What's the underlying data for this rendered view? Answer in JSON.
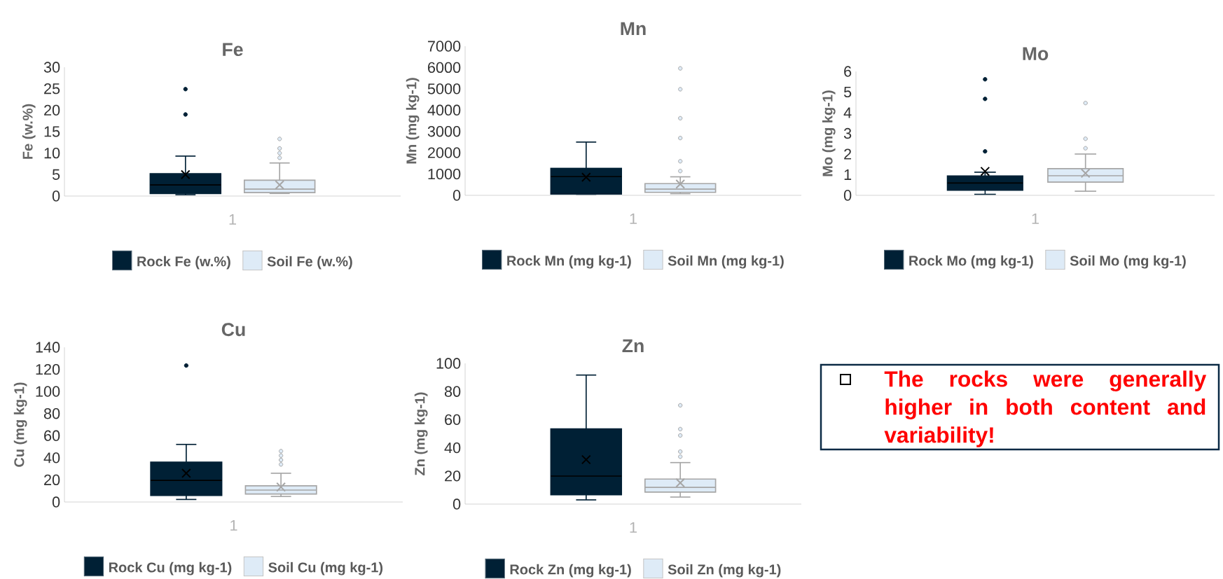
{
  "chart_data": [
    {
      "type": "box",
      "title": "Fe",
      "ylabel": "Fe (w.%)",
      "categories": [
        "1"
      ],
      "ylim": [
        0,
        30
      ],
      "yticks": [
        0,
        5,
        10,
        15,
        20,
        25,
        30
      ],
      "legend": "bottom",
      "series": [
        {
          "name": "Rock Fe (w.%)",
          "color": "#002035",
          "boxes": [
            {
              "low": 0.3,
              "q1": 0.6,
              "median": 2.6,
              "q3": 5.2,
              "high": 9.3,
              "mean": 5.0,
              "outliers": [
                24.9,
                19.0
              ]
            }
          ]
        },
        {
          "name": "Soil Fe (w.%)",
          "color": "#deebf7",
          "boxes": [
            {
              "low": 0.6,
              "q1": 0.8,
              "median": 1.6,
              "q3": 3.7,
              "high": 7.7,
              "mean": 2.6,
              "outliers": [
                13.3,
                11.1,
                10.0,
                8.9
              ]
            }
          ]
        }
      ]
    },
    {
      "type": "box",
      "title": "Mn",
      "ylabel": "Mn (mg kg-1)",
      "categories": [
        "1"
      ],
      "ylim": [
        0,
        7000
      ],
      "yticks": [
        0,
        1000,
        2000,
        3000,
        4000,
        5000,
        6000,
        7000
      ],
      "legend": "bottom",
      "series": [
        {
          "name": "Rock Mn (mg kg-1)",
          "color": "#002035",
          "boxes": [
            {
              "low": 50,
              "q1": 60,
              "median": 880,
              "q3": 1270,
              "high": 2500,
              "mean": 850
            }
          ]
        },
        {
          "name": "Soil Mn (mg kg-1)",
          "color": "#deebf7",
          "boxes": [
            {
              "low": 80,
              "q1": 140,
              "median": 290,
              "q3": 550,
              "high": 870,
              "mean": 530,
              "outliers": [
                5960,
                4980,
                3620,
                2690,
                1600,
                1140
              ]
            }
          ]
        }
      ]
    },
    {
      "type": "box",
      "title": "Mo",
      "ylabel": "Mo (mg kg-1)",
      "categories": [
        "1"
      ],
      "ylim": [
        0,
        6
      ],
      "yticks": [
        0,
        1,
        2,
        3,
        4,
        5,
        6
      ],
      "legend": "bottom",
      "series": [
        {
          "name": "Rock Mo (mg kg-1)",
          "color": "#002035",
          "boxes": [
            {
              "low": 0.05,
              "q1": 0.25,
              "median": 0.6,
              "q3": 0.94,
              "high": 1.12,
              "mean": 1.16,
              "outliers": [
                5.62,
                4.67,
                2.13
              ]
            }
          ]
        },
        {
          "name": "Soil Mo (mg kg-1)",
          "color": "#deebf7",
          "boxes": [
            {
              "low": 0.2,
              "q1": 0.64,
              "median": 0.95,
              "q3": 1.29,
              "high": 2.0,
              "mean": 1.07,
              "outliers": [
                4.47,
                2.74,
                2.28
              ]
            }
          ]
        }
      ]
    },
    {
      "type": "box",
      "title": "Cu",
      "ylabel": "Cu (mg kg-1)",
      "categories": [
        "1"
      ],
      "ylim": [
        0,
        140
      ],
      "yticks": [
        0,
        20,
        40,
        60,
        80,
        100,
        120,
        140
      ],
      "legend": "bottom",
      "series": [
        {
          "name": "Rock Cu (mg kg-1)",
          "color": "#002035",
          "boxes": [
            {
              "low": 2.3,
              "q1": 5.9,
              "median": 19.6,
              "q3": 36.1,
              "high": 52.1,
              "mean": 26,
              "outliers": [
                123.5
              ]
            }
          ]
        },
        {
          "name": "Soil Cu (mg kg-1)",
          "color": "#deebf7",
          "boxes": [
            {
              "low": 5.0,
              "q1": 7.2,
              "median": 10.8,
              "q3": 14.7,
              "high": 26,
              "mean": 13.5,
              "outliers": [
                46,
                42,
                38,
                34
              ]
            }
          ]
        }
      ]
    },
    {
      "type": "box",
      "title": "Zn",
      "ylabel": "Zn (mg kg-1)",
      "categories": [
        "1"
      ],
      "ylim": [
        0,
        100
      ],
      "yticks": [
        0,
        20,
        40,
        60,
        80,
        100
      ],
      "legend": "bottom",
      "series": [
        {
          "name": "Rock Zn (mg kg-1)",
          "color": "#002035",
          "boxes": [
            {
              "low": 3.0,
              "q1": 6.7,
              "median": 19.9,
              "q3": 53.5,
              "high": 91.7,
              "mean": 31.6
            }
          ]
        },
        {
          "name": "Soil Zn (mg kg-1)",
          "color": "#deebf7",
          "boxes": [
            {
              "low": 5.0,
              "q1": 8.5,
              "median": 11.9,
              "q3": 17.8,
              "high": 29.5,
              "mean": 15.1,
              "outliers": [
                70.2,
                53.3,
                48.8,
                37.3,
                33.7
              ]
            }
          ]
        }
      ]
    },
    {
      "type": "other",
      "annotations": [
        "The rocks were generally higher in both content and variability!"
      ]
    }
  ]
}
